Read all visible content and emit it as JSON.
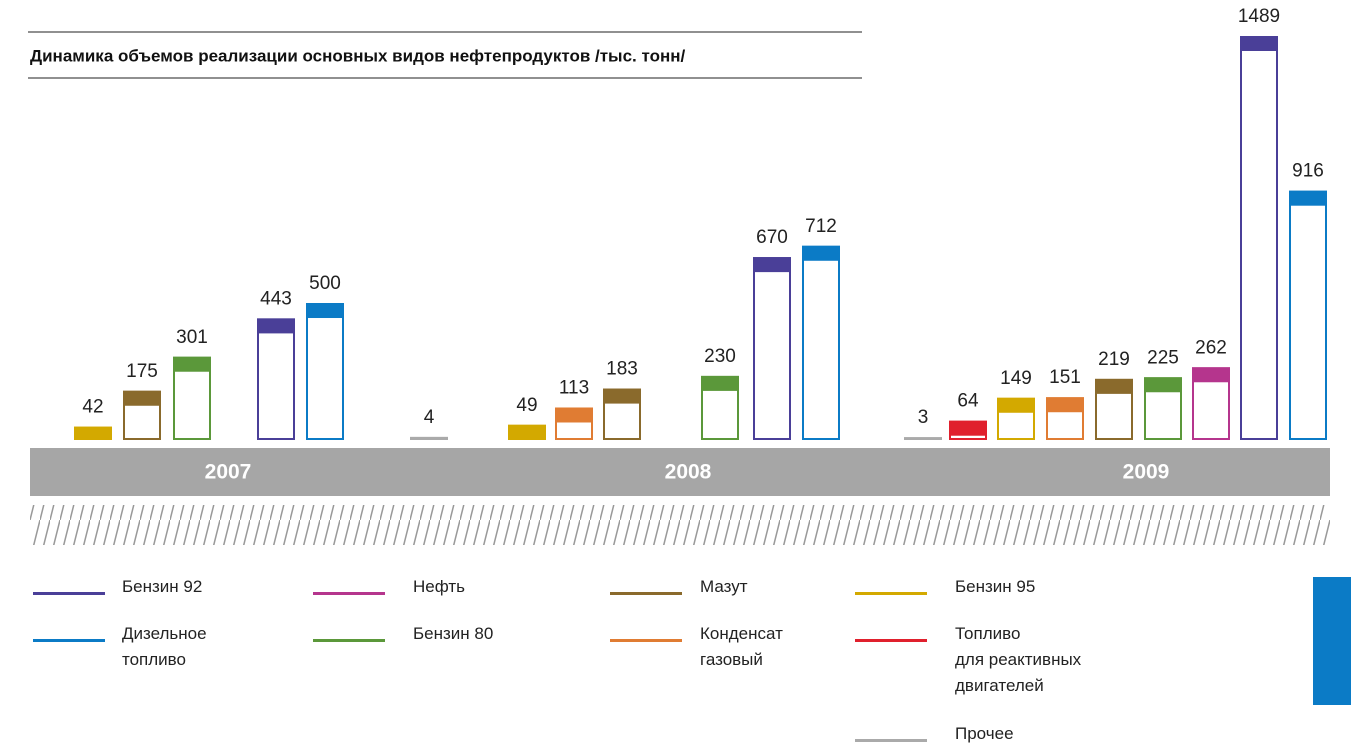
{
  "chart_data": {
    "type": "bar",
    "title": "Динамика объемов реализации основных видов нефтепродуктов /тыс. тонн/",
    "categories": [
      "2007",
      "2008",
      "2009"
    ],
    "series": [
      {
        "name": "Бензин 92",
        "color": "#4a3f98",
        "values": [
          443,
          670,
          1489
        ]
      },
      {
        "name": "Дизельное\nтопливо",
        "color": "#0b7bc6",
        "values": [
          500,
          712,
          916
        ]
      },
      {
        "name": "Нефть",
        "color": "#b5358d",
        "values": [
          null,
          null,
          262
        ]
      },
      {
        "name": "Бензин 80",
        "color": "#5b983a",
        "values": [
          301,
          230,
          225
        ]
      },
      {
        "name": "Мазут",
        "color": "#8a6a2c",
        "values": [
          175,
          183,
          219
        ]
      },
      {
        "name": "Конденсат\nгазовый",
        "color": "#e07c33",
        "values": [
          null,
          113,
          151
        ]
      },
      {
        "name": "Бензин 95",
        "color": "#d3a900",
        "values": [
          42,
          49,
          149
        ]
      },
      {
        "name": "Топливо\nдля реактивных\nдвигателей",
        "color": "#e0202d",
        "values": [
          null,
          null,
          64
        ]
      },
      {
        "name": "Прочее",
        "color": "#aaaaaa",
        "values": [
          null,
          4,
          3
        ]
      }
    ]
  }
}
